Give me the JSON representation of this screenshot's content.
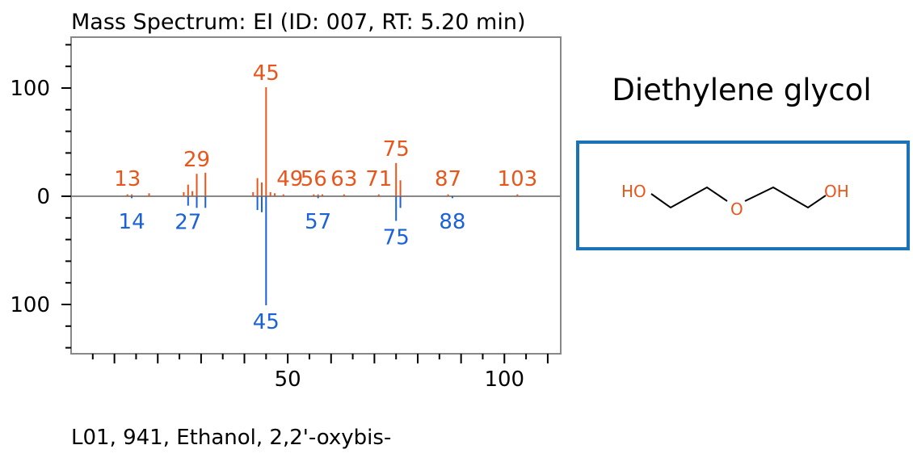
{
  "title": "Mass Spectrum: EI (ID: 007, RT: 5.20 min)",
  "compound_name": "Diethylene glycol",
  "footer": "L01, 941, Ethanol, 2,2'-oxybis-",
  "colors": {
    "top": "#e8561c",
    "bottom": "#1a62d6",
    "frame": "#888888",
    "zero_line": "#888888",
    "box": "#1a73b8"
  },
  "structure": {
    "atoms": [
      "HO",
      "O",
      "OH"
    ]
  },
  "chart_data": {
    "type": "bar",
    "xlabel": "",
    "ylabel": "",
    "xlim": [
      0,
      113
    ],
    "ylim": [
      -150,
      150
    ],
    "x_ticks": [
      50,
      100
    ],
    "y_tick_labels": [
      {
        "value": 100,
        "label": "100"
      },
      {
        "value": 0,
        "label": "0"
      },
      {
        "value": -100,
        "label": "100"
      }
    ],
    "series": [
      {
        "name": "",
        "direction": "up",
        "peaks": [
          {
            "mz": 13,
            "intensity": 1
          },
          {
            "mz": 14,
            "intensity": 1
          },
          {
            "mz": 18,
            "intensity": 2
          },
          {
            "mz": 26,
            "intensity": 3
          },
          {
            "mz": 27,
            "intensity": 10
          },
          {
            "mz": 28,
            "intensity": 4
          },
          {
            "mz": 29,
            "intensity": 20
          },
          {
            "mz": 31,
            "intensity": 21
          },
          {
            "mz": 42,
            "intensity": 3
          },
          {
            "mz": 43,
            "intensity": 16
          },
          {
            "mz": 44,
            "intensity": 12
          },
          {
            "mz": 45,
            "intensity": 100
          },
          {
            "mz": 46,
            "intensity": 3
          },
          {
            "mz": 47,
            "intensity": 2
          },
          {
            "mz": 49,
            "intensity": 1
          },
          {
            "mz": 56,
            "intensity": 1
          },
          {
            "mz": 57,
            "intensity": 1
          },
          {
            "mz": 58,
            "intensity": 1
          },
          {
            "mz": 63,
            "intensity": 1
          },
          {
            "mz": 71,
            "intensity": 1
          },
          {
            "mz": 75,
            "intensity": 30
          },
          {
            "mz": 76,
            "intensity": 14
          },
          {
            "mz": 87,
            "intensity": 1
          },
          {
            "mz": 103,
            "intensity": 1
          }
        ],
        "labels": [
          {
            "mz": 13,
            "text": "13"
          },
          {
            "mz": 29,
            "text": "29"
          },
          {
            "mz": 45,
            "text": "45"
          },
          {
            "mz": 49,
            "text": "49"
          },
          {
            "mz": 56,
            "text": "56"
          },
          {
            "mz": 63,
            "text": "63"
          },
          {
            "mz": 71,
            "text": "71"
          },
          {
            "mz": 75,
            "text": "75"
          },
          {
            "mz": 87,
            "text": "87"
          },
          {
            "mz": 103,
            "text": "103"
          }
        ]
      },
      {
        "name": "",
        "direction": "down",
        "peaks": [
          {
            "mz": 14,
            "intensity": 1
          },
          {
            "mz": 27,
            "intensity": 8
          },
          {
            "mz": 29,
            "intensity": 10
          },
          {
            "mz": 31,
            "intensity": 10
          },
          {
            "mz": 43,
            "intensity": 12
          },
          {
            "mz": 44,
            "intensity": 14
          },
          {
            "mz": 45,
            "intensity": 100
          },
          {
            "mz": 57,
            "intensity": 1
          },
          {
            "mz": 75,
            "intensity": 22
          },
          {
            "mz": 76,
            "intensity": 10
          },
          {
            "mz": 88,
            "intensity": 1
          }
        ],
        "labels": [
          {
            "mz": 14,
            "text": "14"
          },
          {
            "mz": 27,
            "text": "27"
          },
          {
            "mz": 45,
            "text": "45"
          },
          {
            "mz": 57,
            "text": "57"
          },
          {
            "mz": 75,
            "text": "75"
          },
          {
            "mz": 88,
            "text": "88"
          }
        ]
      }
    ]
  }
}
